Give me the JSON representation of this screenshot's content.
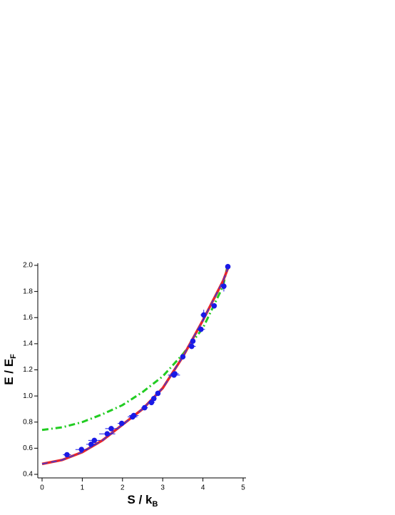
{
  "chart_data": {
    "type": "scatter",
    "xlabel_main": "S / k",
    "xlabel_sub": "B",
    "ylabel_main": "E / E",
    "ylabel_sub": "F",
    "xlim": [
      0,
      5
    ],
    "xticks": [
      0,
      1,
      2,
      3,
      4,
      5
    ],
    "ylim": [
      0.4,
      2.0
    ],
    "yticks": [
      {
        "value": 0.4,
        "label": "0.4"
      },
      {
        "value": 0.6,
        "label": "0.6"
      },
      {
        "value": 0.8,
        "label": "0.8"
      },
      {
        "value": 1.0,
        "label": "1.0"
      },
      {
        "value": 1.2,
        "label": "1.2"
      },
      {
        "value": 1.4,
        "label": "1.4"
      },
      {
        "value": 1.6,
        "label": "1.6"
      },
      {
        "value": 1.8,
        "label": "1.8"
      },
      {
        "value": 2.0,
        "label": "2.0"
      }
    ],
    "series": [
      {
        "style": "dashdot",
        "color": "#22cc22",
        "x": [
          0,
          0.5,
          1,
          1.5,
          2,
          2.5,
          3,
          3.5,
          4,
          4.5,
          4.6
        ],
        "values": [
          0.74,
          0.76,
          0.8,
          0.86,
          0.93,
          1.03,
          1.15,
          1.32,
          1.52,
          1.84,
          1.98
        ]
      },
      {
        "style": "solid",
        "color": "#e8262a",
        "x": [
          0,
          0.5,
          1,
          1.5,
          2,
          2.5,
          3,
          3.5,
          4,
          4.5,
          4.65
        ],
        "values": [
          0.48,
          0.51,
          0.57,
          0.66,
          0.78,
          0.9,
          1.06,
          1.3,
          1.58,
          1.88,
          2.0
        ]
      },
      {
        "style": "dashed",
        "color": "#3b3bd9",
        "x": [
          0,
          0.5,
          1,
          1.5,
          2,
          2.5,
          3,
          3.5,
          4,
          4.5,
          4.65
        ],
        "values": [
          0.48,
          0.51,
          0.57,
          0.66,
          0.78,
          0.9,
          1.06,
          1.3,
          1.58,
          1.88,
          2.0
        ]
      },
      {
        "style": "points",
        "color": "#1a1ae6",
        "x": [
          0.62,
          0.98,
          1.22,
          1.3,
          1.62,
          1.72,
          1.98,
          2.25,
          2.28,
          2.55,
          2.72,
          2.78,
          2.88,
          3.28,
          3.3,
          3.5,
          3.72,
          3.75,
          3.95,
          4.02,
          4.28,
          4.52,
          4.62
        ],
        "values": [
          0.55,
          0.59,
          0.63,
          0.66,
          0.71,
          0.75,
          0.79,
          0.84,
          0.85,
          0.91,
          0.95,
          0.98,
          1.02,
          1.16,
          1.17,
          1.3,
          1.38,
          1.42,
          1.51,
          1.62,
          1.69,
          1.84,
          1.99
        ],
        "xerr": [
          0.1,
          0.15,
          0.12,
          0.15,
          0.2,
          0.15,
          0.1,
          0.12,
          0.12,
          0.08,
          0.08,
          0.06,
          0.06,
          0.15,
          0.1,
          0.06,
          0.1,
          0.06,
          0.1,
          0.08,
          0.06,
          0.06,
          0.04
        ],
        "yerr": [
          0.01,
          0.01,
          0.02,
          0.01,
          0.01,
          0.02,
          0.01,
          0.02,
          0.02,
          0.01,
          0.01,
          0.02,
          0.01,
          0.02,
          0.01,
          0.01,
          0.02,
          0.02,
          0.01,
          0.04,
          0.02,
          0.04,
          0.02
        ]
      }
    ]
  }
}
